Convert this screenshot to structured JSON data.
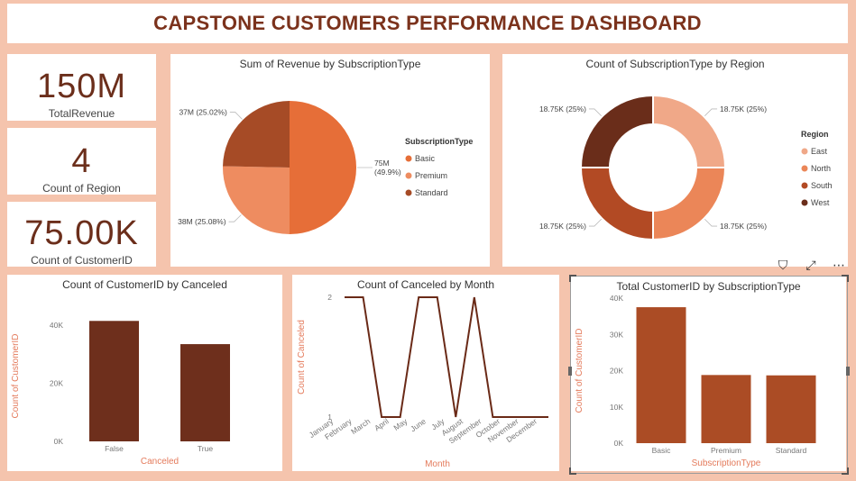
{
  "dashboard_title": "CAPSTONE CUSTOMERS PERFORMANCE DASHBOARD",
  "kpis": [
    {
      "value": "150M",
      "label": "TotalRevenue"
    },
    {
      "value": "4",
      "label": "Count of Region"
    },
    {
      "value": "75.00K",
      "label": "Count of CustomerID"
    }
  ],
  "visual_header_icons": [
    "filter-icon",
    "focus-mode-icon",
    "more-options-icon"
  ],
  "icon_glyphs": {
    "filter": "⛉",
    "focus": "⤢",
    "more": "⋯"
  },
  "chart_data": [
    {
      "type": "pie",
      "title": "Sum of Revenue by SubscriptionType",
      "legend_title": "SubscriptionType",
      "legend_position": "right",
      "slices": [
        {
          "name": "Basic",
          "value": 75,
          "pct": 49.9,
          "label": "75M (49.9%)",
          "color": "#e66e38"
        },
        {
          "name": "Premium",
          "value": 38,
          "pct": 25.08,
          "label": "38M (25.08%)",
          "color": "#ee8c60"
        },
        {
          "name": "Standard",
          "value": 37,
          "pct": 25.02,
          "label": "37M (25.02%)",
          "color": "#a64b26"
        }
      ]
    },
    {
      "type": "pie",
      "subtype": "donut",
      "title": "Count of SubscriptionType by Region",
      "legend_title": "Region",
      "legend_position": "right",
      "slices": [
        {
          "name": "East",
          "value": 18.75,
          "pct": 25,
          "label": "18.75K (25%)",
          "color": "#f0a888"
        },
        {
          "name": "North",
          "value": 18.75,
          "pct": 25,
          "label": "18.75K (25%)",
          "color": "#eb8658"
        },
        {
          "name": "South",
          "value": 18.75,
          "pct": 25,
          "label": "18.75K (25%)",
          "color": "#b24a24"
        },
        {
          "name": "West",
          "value": 18.75,
          "pct": 25,
          "label": "18.75K (25%)",
          "color": "#6a2d1a"
        }
      ]
    },
    {
      "type": "bar",
      "title": "Count of CustomerID by Canceled",
      "xlabel": "Canceled",
      "ylabel": "Count of CustomerID",
      "categories": [
        "False",
        "True"
      ],
      "values": [
        41500,
        33500
      ],
      "yticks": [
        0,
        20000,
        40000
      ],
      "ytick_labels": [
        "0K",
        "20K",
        "40K"
      ],
      "ylim": [
        0,
        45000
      ],
      "color": "#6e2f1c"
    },
    {
      "type": "line",
      "title": "Count of Canceled by Month",
      "xlabel": "Month",
      "ylabel": "Count of Canceled",
      "categories": [
        "January",
        "February",
        "March",
        "April",
        "May",
        "June",
        "July",
        "August",
        "September",
        "October",
        "November",
        "December"
      ],
      "values": [
        2,
        2,
        1,
        1,
        2,
        2,
        1,
        2,
        1,
        1,
        1,
        1
      ],
      "yticks": [
        1,
        2
      ],
      "ylim": [
        1,
        2
      ],
      "color": "#6a2a17"
    },
    {
      "type": "bar",
      "title": "Total CustomerID by SubscriptionType",
      "xlabel": "SubscriptionType",
      "ylabel": "Count of CustomerID",
      "categories": [
        "Basic",
        "Premium",
        "Standard"
      ],
      "values": [
        37500,
        18800,
        18700
      ],
      "yticks": [
        0,
        10000,
        20000,
        30000,
        40000
      ],
      "ytick_labels": [
        "0K",
        "10K",
        "20K",
        "30K",
        "40K"
      ],
      "ylim": [
        0,
        40000
      ],
      "color": "#ab4c25"
    }
  ]
}
